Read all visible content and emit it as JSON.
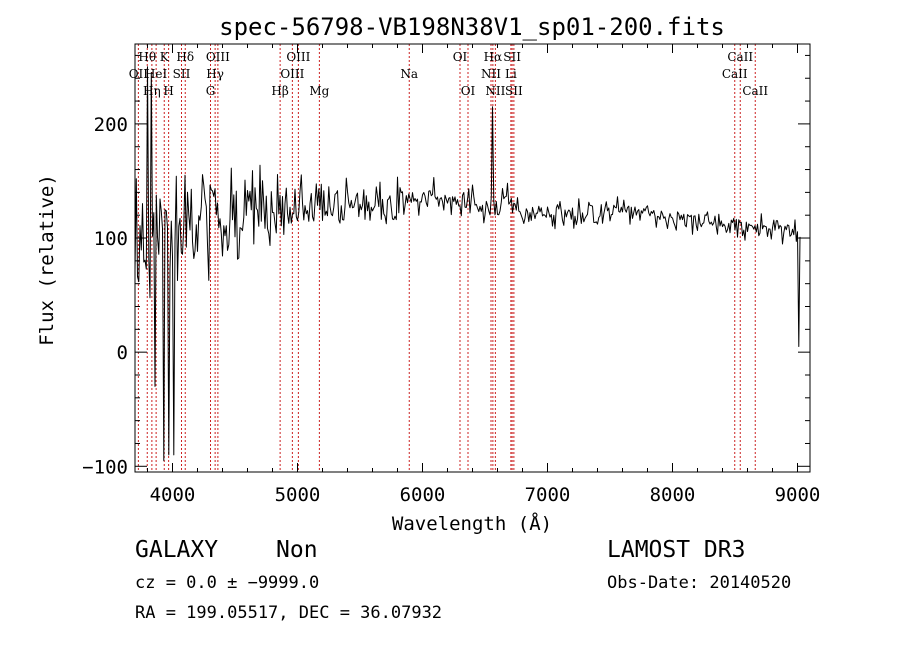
{
  "chart_data": {
    "type": "line",
    "title": "spec-56798-VB198N38V1_sp01-200.fits",
    "xlabel": "Wavelength (Å)",
    "ylabel": "Flux (relative)",
    "xlim": [
      3700,
      9100
    ],
    "ylim": [
      -105,
      270
    ],
    "xticks": [
      {
        "value": 4000,
        "label": "4000"
      },
      {
        "value": 5000,
        "label": "5000"
      },
      {
        "value": 6000,
        "label": "6000"
      },
      {
        "value": 7000,
        "label": "7000"
      },
      {
        "value": 8000,
        "label": "8000"
      },
      {
        "value": 9000,
        "label": "9000"
      }
    ],
    "yticks": [
      {
        "value": -100,
        "label": "−100"
      },
      {
        "value": 0,
        "label": "0"
      },
      {
        "value": 100,
        "label": "100"
      },
      {
        "value": 200,
        "label": "200"
      }
    ],
    "line_color": "#000000",
    "marker_color": "#cc2020",
    "line_markers": [
      {
        "wavelength": 3727,
        "label": "OII",
        "row": 1
      },
      {
        "wavelength": 3798,
        "label": "Hθ",
        "row": 0
      },
      {
        "wavelength": 3835,
        "label": "Hη",
        "row": 2
      },
      {
        "wavelength": 3869,
        "label": "HeI",
        "row": 1
      },
      {
        "wavelength": 3934,
        "label": "K",
        "row": 0
      },
      {
        "wavelength": 3969,
        "label": "H",
        "row": 2
      },
      {
        "wavelength": 4072,
        "label": "SII",
        "row": 1
      },
      {
        "wavelength": 4102,
        "label": "Hδ",
        "row": 0
      },
      {
        "wavelength": 4304,
        "label": "G",
        "row": 2
      },
      {
        "wavelength": 4341,
        "label": "Hγ",
        "row": 1
      },
      {
        "wavelength": 4363,
        "label": "OIII",
        "row": 0
      },
      {
        "wavelength": 4861,
        "label": "Hβ",
        "row": 2
      },
      {
        "wavelength": 4959,
        "label": "OIII",
        "row": 1
      },
      {
        "wavelength": 5007,
        "label": "OIII",
        "row": 0
      },
      {
        "wavelength": 5175,
        "label": "Mg",
        "row": 2
      },
      {
        "wavelength": 5894,
        "label": "Na",
        "row": 1
      },
      {
        "wavelength": 6300,
        "label": "OI",
        "row": 0
      },
      {
        "wavelength": 6364,
        "label": "OI",
        "row": 2
      },
      {
        "wavelength": 6548,
        "label": "NII",
        "row": 1
      },
      {
        "wavelength": 6563,
        "label": "Hα",
        "row": 0
      },
      {
        "wavelength": 6583,
        "label": "NII",
        "row": 2
      },
      {
        "wavelength": 6707,
        "label": "Li",
        "row": 1
      },
      {
        "wavelength": 6717,
        "label": "SII",
        "row": 0
      },
      {
        "wavelength": 6731,
        "label": "SII",
        "row": 2
      },
      {
        "wavelength": 8498,
        "label": "CaII",
        "row": 1
      },
      {
        "wavelength": 8542,
        "label": "CaII",
        "row": 0
      },
      {
        "wavelength": 8662,
        "label": "CaII",
        "row": 2
      }
    ],
    "spectrum": {
      "x_start": 3700,
      "x_end": 9020,
      "x_step": 10,
      "spikes": [
        {
          "wavelength": 3800,
          "flux": 250
        },
        {
          "wavelength": 3830,
          "flux": 245
        },
        {
          "wavelength": 3860,
          "flux": -30
        },
        {
          "wavelength": 3930,
          "flux": -95
        },
        {
          "wavelength": 3970,
          "flux": -90
        },
        {
          "wavelength": 4010,
          "flux": -90
        },
        {
          "wavelength": 6560,
          "flux": 215
        },
        {
          "wavelength": 9010,
          "flux": 5
        }
      ],
      "samples": [
        [
          3700,
          70
        ],
        [
          3750,
          90
        ],
        [
          3800,
          95
        ],
        [
          3900,
          100
        ],
        [
          4000,
          105
        ],
        [
          4200,
          112
        ],
        [
          4400,
          118
        ],
        [
          4600,
          122
        ],
        [
          5000,
          128
        ],
        [
          5500,
          130
        ],
        [
          6000,
          132
        ],
        [
          6500,
          130
        ],
        [
          6700,
          130
        ],
        [
          7000,
          122
        ],
        [
          7300,
          120
        ],
        [
          7600,
          125
        ],
        [
          8000,
          117
        ],
        [
          8400,
          112
        ],
        [
          8800,
          108
        ],
        [
          9020,
          105
        ]
      ],
      "noise": [
        [
          3700,
          55
        ],
        [
          4000,
          48
        ],
        [
          4300,
          35
        ],
        [
          4700,
          24
        ],
        [
          5200,
          17
        ],
        [
          5800,
          14
        ],
        [
          6400,
          12
        ],
        [
          7000,
          9
        ],
        [
          8000,
          8
        ],
        [
          9020,
          8
        ]
      ]
    }
  },
  "info": {
    "class": "GALAXY",
    "subclass": "Non",
    "survey": "LAMOST DR3",
    "redshift": "cz = 0.0 ± −9999.0",
    "obs_date": "Obs-Date: 20140520",
    "coords": "RA = 199.05517, DEC =  36.07932"
  }
}
